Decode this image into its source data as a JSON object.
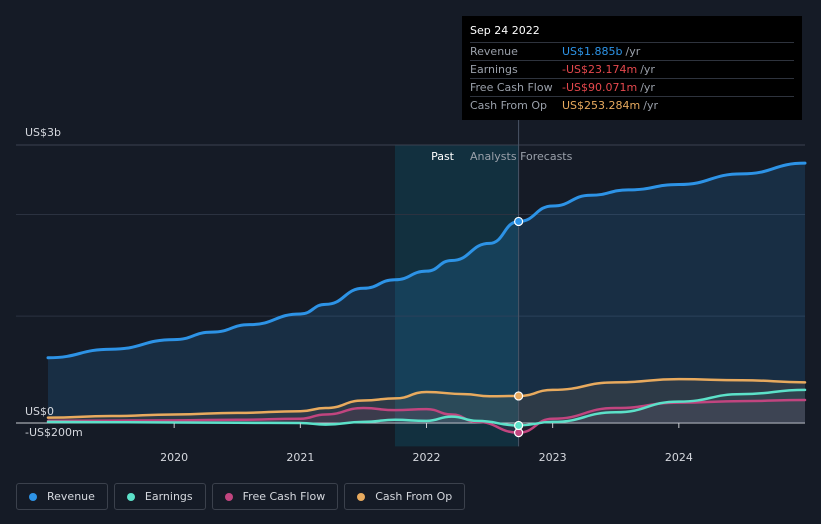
{
  "chart_data": {
    "type": "line",
    "y_top_label": "US$3b",
    "y_zero_label": "US$0",
    "y_bottom_label": "-US$200m",
    "ylim": [
      -200,
      2600
    ],
    "x_ticks": [
      "2020",
      "2021",
      "2022",
      "2023",
      "2024"
    ],
    "past_label": "Past",
    "forecast_label": "Analysts Forecasts",
    "series": [
      {
        "name": "Revenue",
        "color": "#2d93e6",
        "x": [
          2019.0,
          2019.5,
          2020.0,
          2020.3,
          2020.6,
          2021.0,
          2021.2,
          2021.5,
          2021.75,
          2022.0,
          2022.2,
          2022.5,
          2022.73,
          2023.0,
          2023.3,
          2023.6,
          2024.0,
          2024.5,
          2025.0
        ],
        "values": [
          610,
          690,
          780,
          850,
          920,
          1020,
          1110,
          1260,
          1340,
          1420,
          1520,
          1680,
          1885,
          2030,
          2130,
          2180,
          2230,
          2330,
          2430
        ]
      },
      {
        "name": "Earnings",
        "color": "#5ce1c9",
        "x": [
          2019.0,
          2020.0,
          2020.5,
          2021.0,
          2021.2,
          2021.5,
          2021.75,
          2022.0,
          2022.2,
          2022.4,
          2022.73,
          2023.0,
          2023.5,
          2024.0,
          2024.5,
          2025.0
        ],
        "values": [
          10,
          5,
          2,
          0,
          -15,
          10,
          30,
          20,
          60,
          20,
          -23,
          10,
          100,
          200,
          270,
          310
        ]
      },
      {
        "name": "Free Cash Flow",
        "color": "#c1457f",
        "x": [
          2019.0,
          2020.0,
          2020.5,
          2021.0,
          2021.2,
          2021.5,
          2021.75,
          2022.0,
          2022.2,
          2022.4,
          2022.73,
          2023.0,
          2023.5,
          2024.0,
          2024.5,
          2025.0
        ],
        "values": [
          20,
          25,
          30,
          40,
          80,
          140,
          120,
          130,
          80,
          10,
          -90,
          40,
          140,
          190,
          205,
          215
        ]
      },
      {
        "name": "Cash From Op",
        "color": "#e8aa5e",
        "x": [
          2019.0,
          2019.5,
          2020.0,
          2020.5,
          2021.0,
          2021.2,
          2021.5,
          2021.75,
          2022.0,
          2022.3,
          2022.5,
          2022.73,
          2023.0,
          2023.5,
          2024.0,
          2024.5,
          2025.0
        ],
        "values": [
          50,
          65,
          80,
          95,
          110,
          140,
          210,
          230,
          290,
          270,
          250,
          253,
          310,
          380,
          410,
          400,
          380
        ]
      }
    ],
    "tooltip": {
      "date": "Sep 24 2022",
      "rows": [
        {
          "label": "Revenue",
          "value": "US$1.885b",
          "unit": "/yr",
          "color": "#2d93e6"
        },
        {
          "label": "Earnings",
          "value": "-US$23.174m",
          "unit": "/yr",
          "color": "#e5484d"
        },
        {
          "label": "Free Cash Flow",
          "value": "-US$90.071m",
          "unit": "/yr",
          "color": "#e5484d"
        },
        {
          "label": "Cash From Op",
          "value": "US$253.284m",
          "unit": "/yr",
          "color": "#e8aa5e"
        }
      ]
    },
    "legend": [
      "Revenue",
      "Earnings",
      "Free Cash Flow",
      "Cash From Op"
    ]
  }
}
